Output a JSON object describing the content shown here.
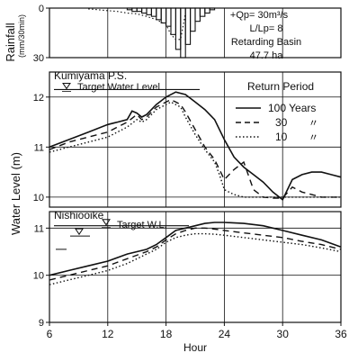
{
  "chart_data": [
    {
      "id": "rainfall",
      "type": "bar",
      "ylabel": "Rainfall",
      "yunit": "(mm/30min)",
      "ylim": [
        0,
        30
      ],
      "yticks": [
        0,
        30
      ],
      "xlim": [
        6,
        36
      ],
      "y_inverted": true,
      "x": [
        14,
        14.5,
        15,
        15.5,
        16,
        16.5,
        17,
        17.5,
        18,
        18.5,
        19,
        19.5,
        20,
        20.5,
        21,
        21.5,
        22,
        22.5
      ],
      "values": [
        1,
        2,
        2,
        3,
        4,
        5,
        7,
        9,
        11,
        16,
        25,
        30,
        22,
        14,
        8,
        5,
        3,
        1
      ],
      "dotted_curve": {
        "x": [
          10,
          11,
          12,
          13,
          14,
          15,
          16,
          17,
          18,
          18.5,
          19,
          19.5,
          20
        ],
        "values": [
          0.5,
          1,
          1.5,
          2,
          3,
          3.5,
          5,
          7,
          10,
          16,
          19,
          19,
          3
        ]
      },
      "annotations": [
        "+Qp= 30m³/s",
        "L/Lp= 8",
        "Retarding Basin",
        "47.7 ha"
      ]
    },
    {
      "id": "kumiyama",
      "type": "line",
      "station_label": "Kumiyama P.S.",
      "target_label": "Target Water Level",
      "target_level": 12.15,
      "ylim": [
        9.8,
        12.5
      ],
      "yticks": [
        10,
        11,
        12
      ],
      "xlim": [
        6,
        36
      ],
      "legend_title": "Return Period",
      "series": [
        {
          "name": "100 Years",
          "style": "solid",
          "x": [
            6,
            8,
            10,
            12,
            13,
            14,
            14.5,
            15,
            15.5,
            16,
            17,
            18,
            19,
            20,
            21,
            22,
            23,
            24,
            25,
            26,
            27,
            28,
            29,
            30,
            31,
            32,
            33,
            34,
            35,
            36
          ],
          "y": [
            11.0,
            11.15,
            11.3,
            11.45,
            11.5,
            11.55,
            11.72,
            11.68,
            11.6,
            11.65,
            11.85,
            12.0,
            12.1,
            12.05,
            11.9,
            11.75,
            11.55,
            11.15,
            10.8,
            10.6,
            10.45,
            10.3,
            10.1,
            9.95,
            10.35,
            10.45,
            10.5,
            10.5,
            10.45,
            10.4
          ]
        },
        {
          "name": "30",
          "style": "dashed",
          "x": [
            6,
            8,
            10,
            12,
            13,
            14,
            15,
            15.5,
            16,
            17,
            18,
            18.5,
            19,
            19.5,
            20,
            21,
            22,
            23,
            23.5,
            24,
            25,
            26,
            27,
            28,
            29,
            30,
            31,
            32,
            33,
            34,
            35,
            36
          ],
          "y": [
            10.95,
            11.1,
            11.2,
            11.3,
            11.4,
            11.5,
            11.65,
            11.55,
            11.6,
            11.8,
            11.9,
            11.95,
            11.9,
            11.85,
            11.7,
            11.35,
            11.0,
            10.75,
            10.55,
            10.35,
            10.55,
            10.7,
            10.15,
            10.0,
            9.98,
            9.98,
            10.2,
            10.1,
            10.05,
            10.0,
            10.0,
            10.0
          ]
        },
        {
          "name": "10",
          "style": "dotted",
          "x": [
            6,
            8,
            10,
            12,
            14,
            15,
            15.5,
            16,
            17,
            18,
            18.5,
            19,
            19.5,
            20,
            21,
            22,
            23,
            23.5,
            24,
            25,
            26,
            27,
            28,
            29,
            30,
            31,
            32,
            33,
            34,
            35,
            36
          ],
          "y": [
            10.9,
            11.0,
            11.1,
            11.2,
            11.4,
            11.55,
            11.5,
            11.55,
            11.75,
            11.85,
            11.9,
            11.85,
            11.8,
            11.6,
            11.25,
            10.95,
            10.7,
            10.45,
            10.15,
            10.05,
            10.0,
            10.0,
            10.0,
            10.0,
            10.0,
            10.0,
            10.0,
            10.0,
            10.0,
            10.0,
            10.0
          ]
        }
      ]
    },
    {
      "id": "nishiooike",
      "type": "line",
      "station_label": "Nishiooike",
      "target_label": "Target W.L.",
      "target_level": 11.05,
      "ylim": [
        9,
        11.35
      ],
      "yticks": [
        9,
        10,
        11
      ],
      "xlim": [
        6,
        36
      ],
      "xticks": [
        6,
        12,
        18,
        24,
        30,
        36
      ],
      "xlabel": "Hour",
      "shared_ylabel": "Water Level (m)",
      "series": [
        {
          "name": "100 Years",
          "style": "solid",
          "x": [
            6,
            8,
            10,
            12,
            14,
            16,
            17,
            18,
            19,
            20,
            21,
            22,
            23,
            24,
            26,
            28,
            30,
            32,
            34,
            36
          ],
          "y": [
            10.0,
            10.1,
            10.2,
            10.3,
            10.45,
            10.55,
            10.65,
            10.8,
            10.95,
            11.0,
            11.05,
            11.1,
            11.12,
            11.12,
            11.1,
            11.05,
            10.95,
            10.85,
            10.75,
            10.6
          ]
        },
        {
          "name": "30",
          "style": "dashed",
          "x": [
            6,
            8,
            10,
            12,
            14,
            16,
            17,
            18,
            19,
            20,
            21,
            22,
            23,
            24,
            26,
            28,
            30,
            32,
            34,
            36
          ],
          "y": [
            9.9,
            10.0,
            10.1,
            10.2,
            10.35,
            10.5,
            10.6,
            10.75,
            10.88,
            10.95,
            11.0,
            11.0,
            10.98,
            10.95,
            10.9,
            10.85,
            10.8,
            10.72,
            10.65,
            10.55
          ]
        },
        {
          "name": "10",
          "style": "dotted",
          "x": [
            6,
            8,
            10,
            12,
            14,
            16,
            17,
            18,
            19,
            20,
            21,
            22,
            23,
            24,
            26,
            28,
            30,
            32,
            34,
            36
          ],
          "y": [
            9.8,
            9.9,
            10.0,
            10.1,
            10.25,
            10.45,
            10.55,
            10.7,
            10.8,
            10.85,
            10.88,
            10.88,
            10.87,
            10.85,
            10.8,
            10.75,
            10.7,
            10.65,
            10.58,
            10.5
          ]
        }
      ]
    }
  ],
  "legend": {
    "title": "Return Period",
    "entries": [
      {
        "style": "solid",
        "label": "100 Years"
      },
      {
        "style": "dashed",
        "label": "30",
        "mark": "〃"
      },
      {
        "style": "dotted",
        "label": "10",
        "mark": "〃"
      }
    ]
  },
  "labels": {
    "rainfall_ylabel": "Rainfall",
    "rainfall_yunit": "(mm/30min)",
    "water_level_ylabel": "Water Level (m)",
    "xlabel": "Hour"
  },
  "colors": {
    "ink": "#111111",
    "background": "#ffffff"
  }
}
